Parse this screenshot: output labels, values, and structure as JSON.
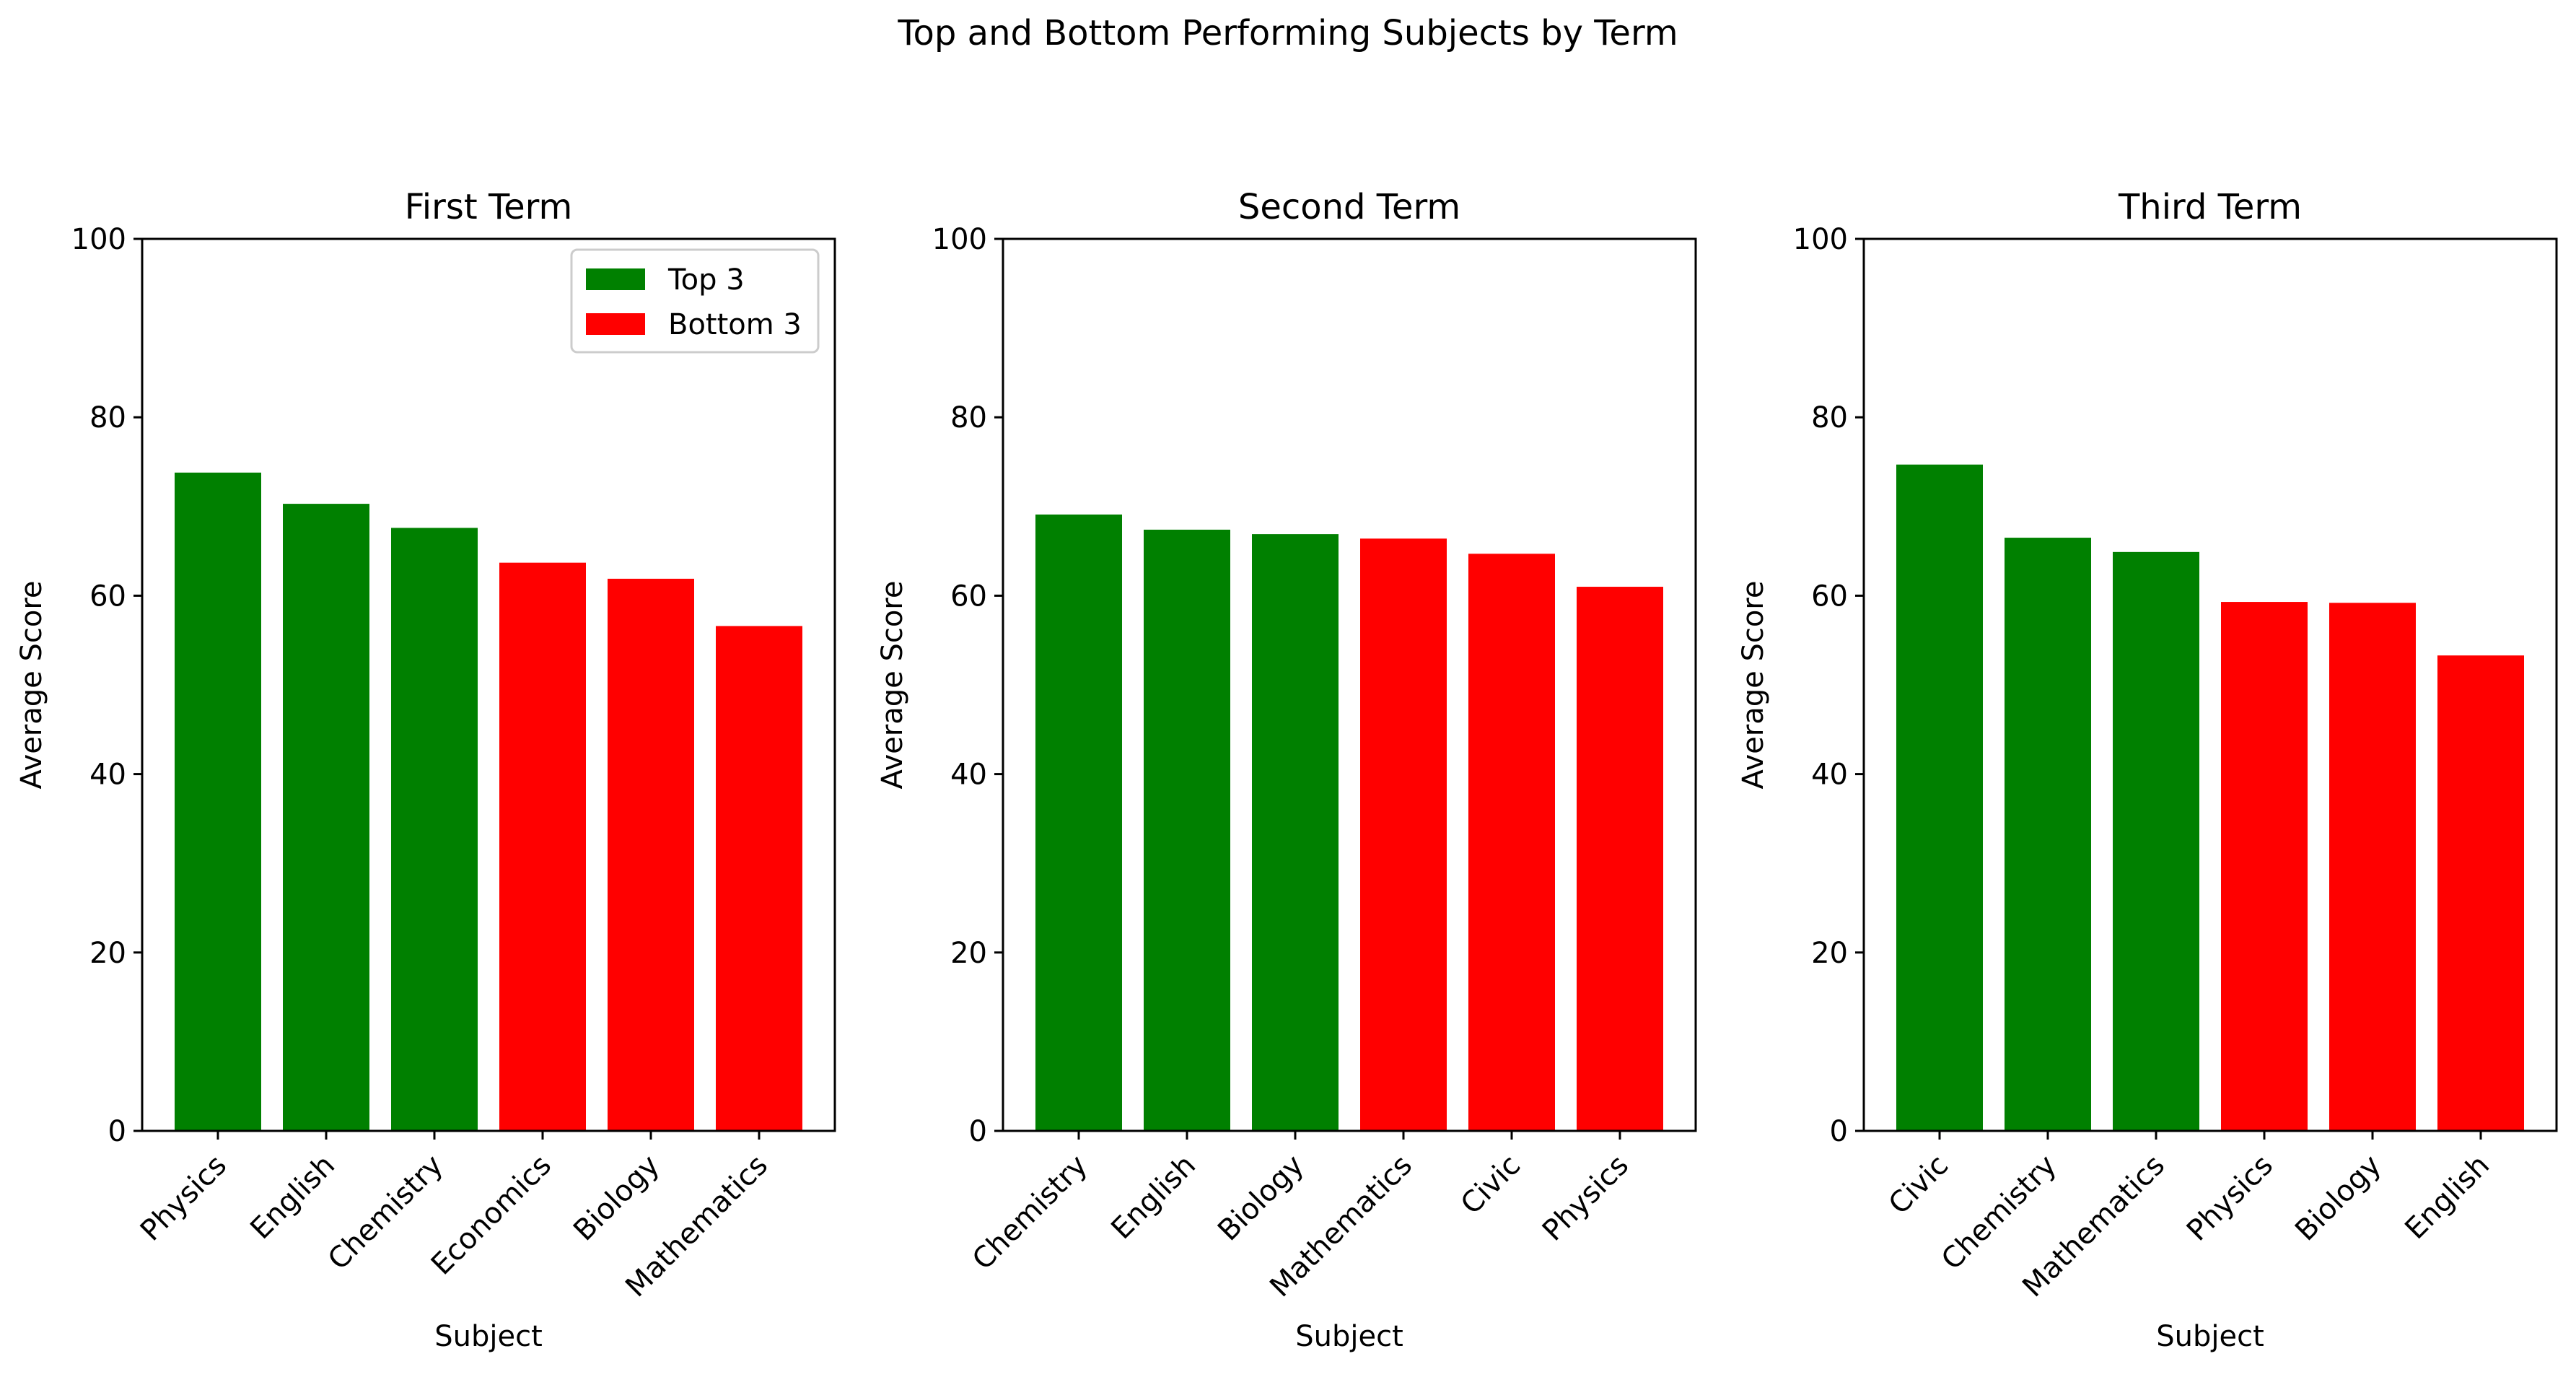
{
  "figure_title": "Top and Bottom Performing Subjects by Term",
  "colors": {
    "top": "#008000",
    "bottom": "#ff0000",
    "axis": "#000000",
    "background": "#ffffff"
  },
  "legend": {
    "entries": [
      "Top 3",
      "Bottom 3"
    ],
    "placement": "upper-right of first panel"
  },
  "chart_data": [
    {
      "type": "bar",
      "title": "First Term",
      "xlabel": "Subject",
      "ylabel": "Average Score",
      "ylim": [
        0,
        100
      ],
      "yticks": [
        0,
        20,
        40,
        60,
        80,
        100
      ],
      "grid": false,
      "categories": [
        "Physics",
        "English",
        "Chemistry",
        "Economics",
        "Biology",
        "Mathematics"
      ],
      "values": [
        73.8,
        70.3,
        67.6,
        63.7,
        61.9,
        56.6
      ],
      "groups": [
        "top",
        "top",
        "top",
        "bottom",
        "bottom",
        "bottom"
      ]
    },
    {
      "type": "bar",
      "title": "Second Term",
      "xlabel": "Subject",
      "ylabel": "Average Score",
      "ylim": [
        0,
        100
      ],
      "yticks": [
        0,
        20,
        40,
        60,
        80,
        100
      ],
      "grid": false,
      "categories": [
        "Chemistry",
        "English",
        "Biology",
        "Mathematics",
        "Civic",
        "Physics"
      ],
      "values": [
        69.1,
        67.4,
        66.9,
        66.4,
        64.7,
        61.0
      ],
      "groups": [
        "top",
        "top",
        "top",
        "bottom",
        "bottom",
        "bottom"
      ]
    },
    {
      "type": "bar",
      "title": "Third Term",
      "xlabel": "Subject",
      "ylabel": "Average Score",
      "ylim": [
        0,
        100
      ],
      "yticks": [
        0,
        20,
        40,
        60,
        80,
        100
      ],
      "grid": false,
      "categories": [
        "Civic",
        "Chemistry",
        "Mathematics",
        "Physics",
        "Biology",
        "English"
      ],
      "values": [
        74.7,
        66.5,
        64.9,
        59.3,
        59.2,
        53.3
      ],
      "groups": [
        "top",
        "top",
        "top",
        "bottom",
        "bottom",
        "bottom"
      ]
    }
  ]
}
